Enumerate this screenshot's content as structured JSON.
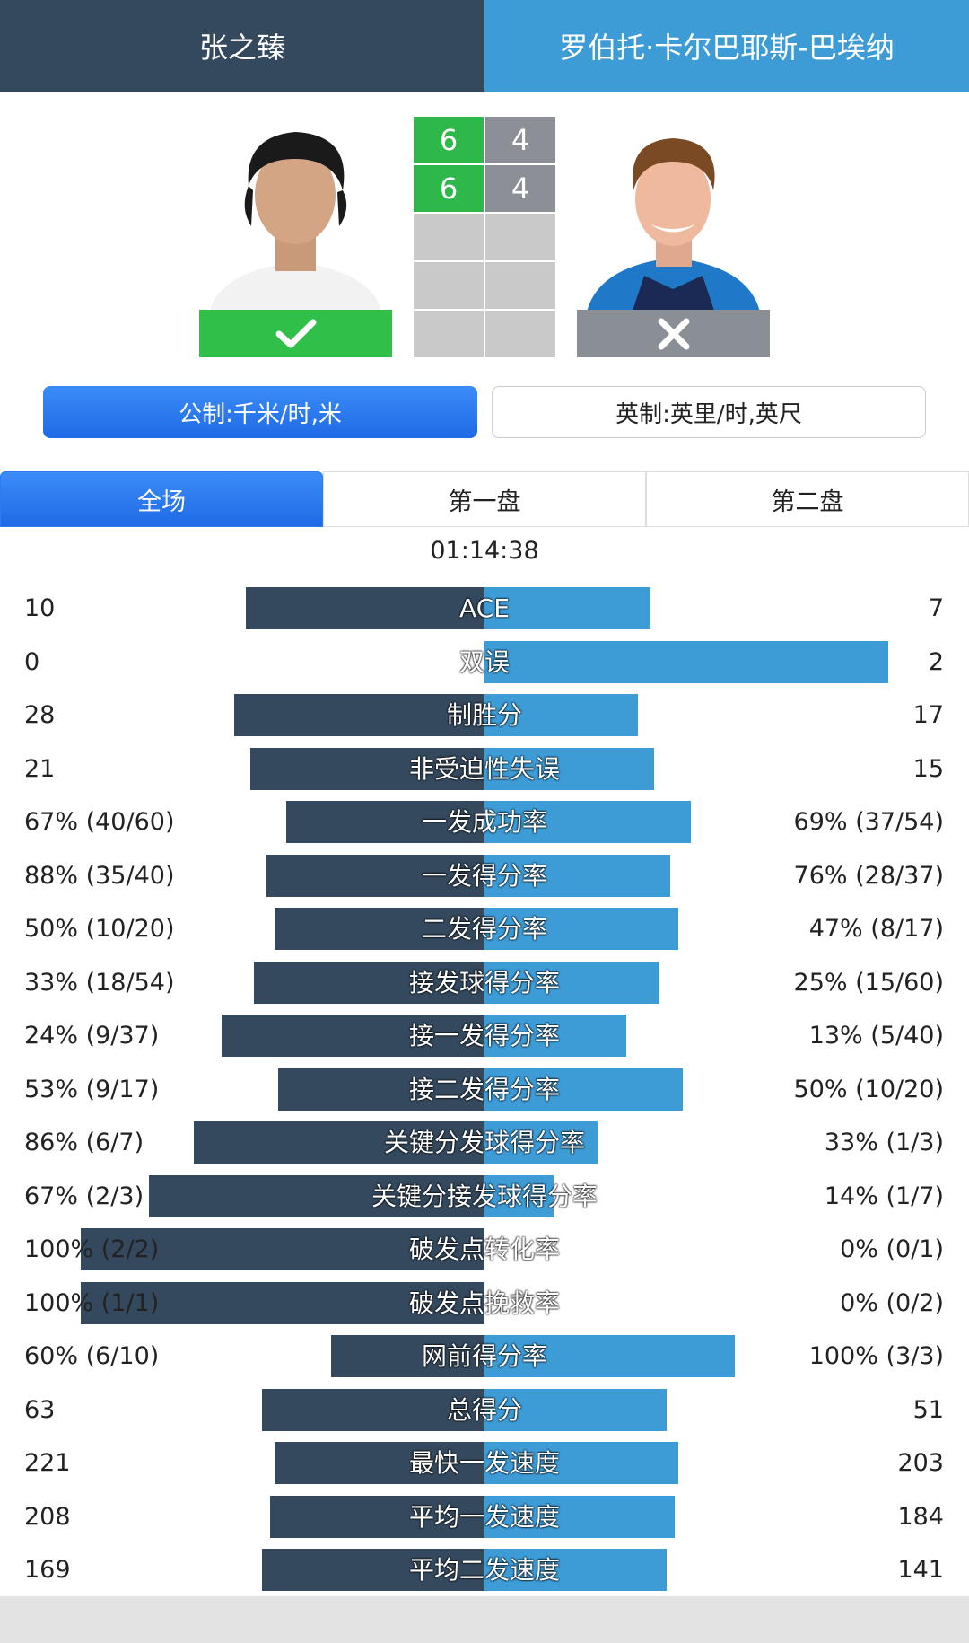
{
  "header": {
    "player1": "张之臻",
    "player2": "罗伯托·卡尔巴耶斯-巴埃纳"
  },
  "scores": {
    "set1": {
      "p1": "6",
      "p2": "4"
    },
    "set2": {
      "p1": "6",
      "p2": "4"
    }
  },
  "result": {
    "p1_icon": "check-icon",
    "p2_icon": "x-icon"
  },
  "units": {
    "metric": "公制:千米/时,米",
    "imperial": "英制:英里/时,英尺"
  },
  "tabs": [
    "全场",
    "第一盘",
    "第二盘"
  ],
  "duration": "01:14:38",
  "colors": {
    "p1": "#34495e",
    "p2": "#3d9bd6",
    "win": "#30c04a",
    "lose": "#8a8f96"
  },
  "stats": [
    {
      "label": "ACE",
      "left": "10",
      "right": "7",
      "left_share": 0.59,
      "right_share": 0.41
    },
    {
      "label": "双误",
      "left": "0",
      "right": "2",
      "left_share": 0.0,
      "right_share": 1.0
    },
    {
      "label": "制胜分",
      "left": "28",
      "right": "17",
      "left_share": 0.62,
      "right_share": 0.38
    },
    {
      "label": "非受迫性失误",
      "left": "21",
      "right": "15",
      "left_share": 0.58,
      "right_share": 0.42
    },
    {
      "label": "一发成功率",
      "left": "67% (40/60)",
      "right": "69% (37/54)",
      "left_share": 0.49,
      "right_share": 0.51
    },
    {
      "label": "一发得分率",
      "left": "88% (35/40)",
      "right": "76% (28/37)",
      "left_share": 0.54,
      "right_share": 0.46
    },
    {
      "label": "二发得分率",
      "left": "50% (10/20)",
      "right": "47% (8/17)",
      "left_share": 0.52,
      "right_share": 0.48
    },
    {
      "label": "接发球得分率",
      "left": "33% (18/54)",
      "right": "25% (15/60)",
      "left_share": 0.57,
      "right_share": 0.43
    },
    {
      "label": "接一发得分率",
      "left": "24% (9/37)",
      "right": "13% (5/40)",
      "left_share": 0.65,
      "right_share": 0.35
    },
    {
      "label": "接二发得分率",
      "left": "53% (9/17)",
      "right": "50% (10/20)",
      "left_share": 0.51,
      "right_share": 0.49
    },
    {
      "label": "关键分发球得分率",
      "left": "86% (6/7)",
      "right": "33% (1/3)",
      "left_share": 0.72,
      "right_share": 0.28
    },
    {
      "label": "关键分接发球得分率",
      "left": "67% (2/3)",
      "right": "14% (1/7)",
      "left_share": 0.83,
      "right_share": 0.17
    },
    {
      "label": "破发点转化率",
      "left": "100% (2/2)",
      "right": "0% (0/1)",
      "left_share": 1.0,
      "right_share": 0.0
    },
    {
      "label": "破发点挽救率",
      "left": "100% (1/1)",
      "right": "0% (0/2)",
      "left_share": 1.0,
      "right_share": 0.0
    },
    {
      "label": "网前得分率",
      "left": "60% (6/10)",
      "right": "100% (3/3)",
      "left_share": 0.38,
      "right_share": 0.62
    },
    {
      "label": "总得分",
      "left": "63",
      "right": "51",
      "left_share": 0.55,
      "right_share": 0.45
    },
    {
      "label": "最快一发速度",
      "left": "221",
      "right": "203",
      "left_share": 0.52,
      "right_share": 0.48
    },
    {
      "label": "平均一发速度",
      "left": "208",
      "right": "184",
      "left_share": 0.53,
      "right_share": 0.47
    },
    {
      "label": "平均二发速度",
      "left": "169",
      "right": "141",
      "left_share": 0.55,
      "right_share": 0.45
    }
  ]
}
